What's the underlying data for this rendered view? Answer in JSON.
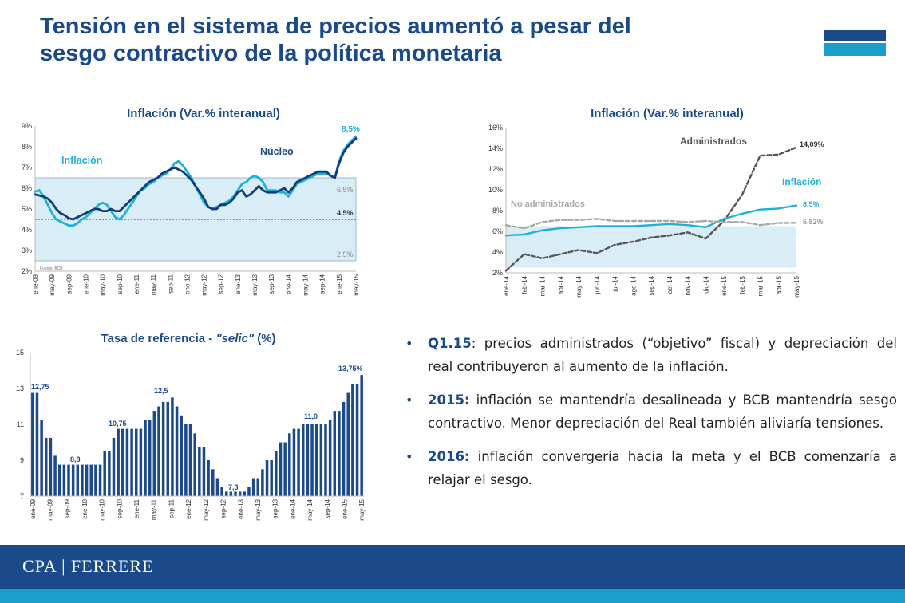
{
  "title": {
    "line1": "Tensión en el sistema de precios aumentó a pesar del",
    "line2": "sesgo contractivo de la política monetaria"
  },
  "colors": {
    "primary": "#1a4a8a",
    "accent": "#1a9fcc",
    "band": "#d8edf5"
  },
  "chart_data": [
    {
      "id": "c1",
      "type": "line",
      "title": "Inflación (Var.% interanual)",
      "ylim": [
        2,
        9
      ],
      "ytick_labels": [
        "2%",
        "3%",
        "4%",
        "5%",
        "6%",
        "7%",
        "8%",
        "9%"
      ],
      "xtick_labels": [
        "ene-09",
        "may-09",
        "sep-09",
        "ene-10",
        "may-10",
        "sep-10",
        "ene-11",
        "may-11",
        "sep-11",
        "ene-12",
        "may-12",
        "sep-12",
        "ene-13",
        "may-13",
        "sep-13",
        "ene-14",
        "may-14",
        "sep-14",
        "ene-15",
        "may-15"
      ],
      "band": [
        2.5,
        6.5
      ],
      "target": 4.5,
      "band_labels": {
        "upper": "6,5%",
        "target": "4,5%",
        "lower": "2,5%"
      },
      "source": "Fuente: BCB",
      "series": [
        {
          "name": "Inflación",
          "color": "#1fb0d8",
          "values": [
            5.84,
            5.9,
            5.6,
            5.2,
            4.8,
            4.5,
            4.4,
            4.3,
            4.2,
            4.2,
            4.3,
            4.5,
            4.6,
            4.8,
            5.0,
            5.2,
            5.3,
            5.2,
            4.9,
            4.6,
            4.5,
            4.7,
            5.0,
            5.3,
            5.6,
            5.9,
            6.0,
            6.2,
            6.3,
            6.5,
            6.6,
            6.7,
            6.9,
            7.2,
            7.3,
            7.1,
            6.8,
            6.5,
            6.1,
            5.7,
            5.3,
            5.1,
            5.0,
            5.1,
            5.2,
            5.3,
            5.4,
            5.6,
            5.9,
            6.2,
            6.3,
            6.5,
            6.6,
            6.5,
            6.3,
            5.9,
            5.9,
            5.9,
            5.8,
            5.8,
            5.6,
            5.9,
            6.2,
            6.3,
            6.4,
            6.5,
            6.6,
            6.7,
            6.7,
            6.7,
            6.6,
            6.5,
            7.3,
            7.8,
            8.1,
            8.3,
            8.5
          ]
        },
        {
          "name": "Núcleo",
          "color": "#0d3d7a",
          "values": [
            5.7,
            5.65,
            5.6,
            5.5,
            5.3,
            5.0,
            4.8,
            4.7,
            4.55,
            4.5,
            4.6,
            4.7,
            4.8,
            4.9,
            5.0,
            5.0,
            4.9,
            4.9,
            5.0,
            4.9,
            4.9,
            5.1,
            5.3,
            5.5,
            5.7,
            5.9,
            6.1,
            6.3,
            6.4,
            6.5,
            6.7,
            6.8,
            6.9,
            7.0,
            6.9,
            6.8,
            6.6,
            6.4,
            6.1,
            5.8,
            5.5,
            5.1,
            5.0,
            5.0,
            5.2,
            5.2,
            5.3,
            5.5,
            5.8,
            5.9,
            5.6,
            5.7,
            5.9,
            6.1,
            5.9,
            5.8,
            5.8,
            5.8,
            5.9,
            6.0,
            5.8,
            6.0,
            6.3,
            6.4,
            6.5,
            6.6,
            6.7,
            6.8,
            6.8,
            6.8,
            6.6,
            6.5,
            7.2,
            7.7,
            8.0,
            8.2,
            8.4
          ]
        }
      ],
      "labels": {
        "inflacion": "Inflación",
        "nucleo": "Núcleo",
        "end_value": "8,5%"
      }
    },
    {
      "id": "c2",
      "type": "line",
      "title": "Inflación (Var.% interanual)",
      "ylim": [
        2,
        16
      ],
      "ytick_labels": [
        "2%",
        "4%",
        "6%",
        "8%",
        "10%",
        "12%",
        "14%",
        "16%"
      ],
      "xtick_labels": [
        "ene-14",
        "feb-14",
        "mar-14",
        "abr-14",
        "may-14",
        "jun-14",
        "jul-14",
        "ago-14",
        "sep-14",
        "oct-14",
        "nov-14",
        "dic-14",
        "ene-15",
        "feb-15",
        "mar-15",
        "abr-15",
        "may-15"
      ],
      "band": [
        2.5,
        6.5
      ],
      "series": [
        {
          "name": "Administrados",
          "color": "#555555",
          "dash": true,
          "values": [
            2.2,
            3.8,
            3.4,
            3.8,
            4.2,
            3.9,
            4.7,
            5.0,
            5.4,
            5.6,
            5.9,
            5.3,
            7.0,
            9.5,
            13.3,
            13.4,
            14.09
          ]
        },
        {
          "name": "Inflación",
          "color": "#1fb0d8",
          "values": [
            5.6,
            5.7,
            6.1,
            6.3,
            6.4,
            6.5,
            6.5,
            6.5,
            6.6,
            6.7,
            6.6,
            6.4,
            7.2,
            7.7,
            8.1,
            8.2,
            8.5
          ]
        },
        {
          "name": "No administrados",
          "color": "#a8a8a8",
          "dash": true,
          "values": [
            6.6,
            6.3,
            6.9,
            7.1,
            7.1,
            7.2,
            7.0,
            7.0,
            7.0,
            7.0,
            6.9,
            7.0,
            6.9,
            6.9,
            6.6,
            6.8,
            6.82
          ]
        }
      ],
      "labels": {
        "administrados": "Administrados",
        "adm_value": "14,09%",
        "inflacion": "Inflación",
        "infl_value": "8,5%",
        "no_administrados": "No administrados",
        "noadm_value": "6,82%"
      }
    },
    {
      "id": "c3",
      "type": "bar",
      "title_main": "Tasa de referencia - ",
      "title_italic": "\"selic\"",
      "title_end": " (%)",
      "ylim": [
        7,
        15
      ],
      "ytick_labels": [
        "7",
        "9",
        "11",
        "13",
        "15"
      ],
      "xtick_labels": [
        "ene-09",
        "may-09",
        "sep-09",
        "ene-10",
        "may-10",
        "sep-10",
        "ene-11",
        "may-11",
        "sep-11",
        "ene-12",
        "may-12",
        "sep-12",
        "ene-13",
        "may-13",
        "sep-13",
        "ene-14",
        "may-14",
        "sep-14",
        "ene-15",
        "may-15"
      ],
      "values": [
        12.75,
        12.75,
        11.25,
        10.25,
        10.25,
        9.25,
        8.75,
        8.75,
        8.75,
        8.75,
        8.75,
        8.75,
        8.75,
        8.75,
        8.75,
        8.75,
        9.5,
        9.5,
        10.25,
        10.75,
        10.75,
        10.75,
        10.75,
        10.75,
        10.75,
        11.25,
        11.25,
        11.75,
        12.0,
        12.25,
        12.25,
        12.5,
        12.0,
        11.5,
        11.0,
        11.0,
        10.5,
        9.75,
        9.75,
        9.0,
        8.5,
        8.0,
        7.5,
        7.25,
        7.25,
        7.25,
        7.25,
        7.25,
        7.5,
        8.0,
        8.0,
        8.5,
        9.0,
        9.0,
        9.5,
        10.0,
        10.0,
        10.5,
        10.75,
        10.75,
        11.0,
        11.0,
        11.0,
        11.0,
        11.0,
        11.0,
        11.25,
        11.75,
        11.75,
        12.25,
        12.75,
        13.25,
        13.25,
        13.75
      ],
      "labels": {
        "v1": "12,75",
        "v2": "8,8",
        "v3": "10,75",
        "v4": "12,5",
        "v5": "7,3",
        "v6": "11,0",
        "v7": "13,75%"
      }
    }
  ],
  "bullets": [
    {
      "lead": "Q1.15",
      "text": ": precios administrados (“objetivo” fiscal) y depreciación del real contribuyeron al aumento de la inflación."
    },
    {
      "lead": "2015:",
      "text": " inflación se mantendría desalineada y BCB mantendría sesgo contractivo. Menor depreciación del Real también aliviaría tensiones."
    },
    {
      "lead": "2016:",
      "text": " inflación convergería hacia la meta y el BCB comenzaría a relajar el sesgo."
    }
  ],
  "footer": {
    "logo": "CPA | FERRERE"
  }
}
